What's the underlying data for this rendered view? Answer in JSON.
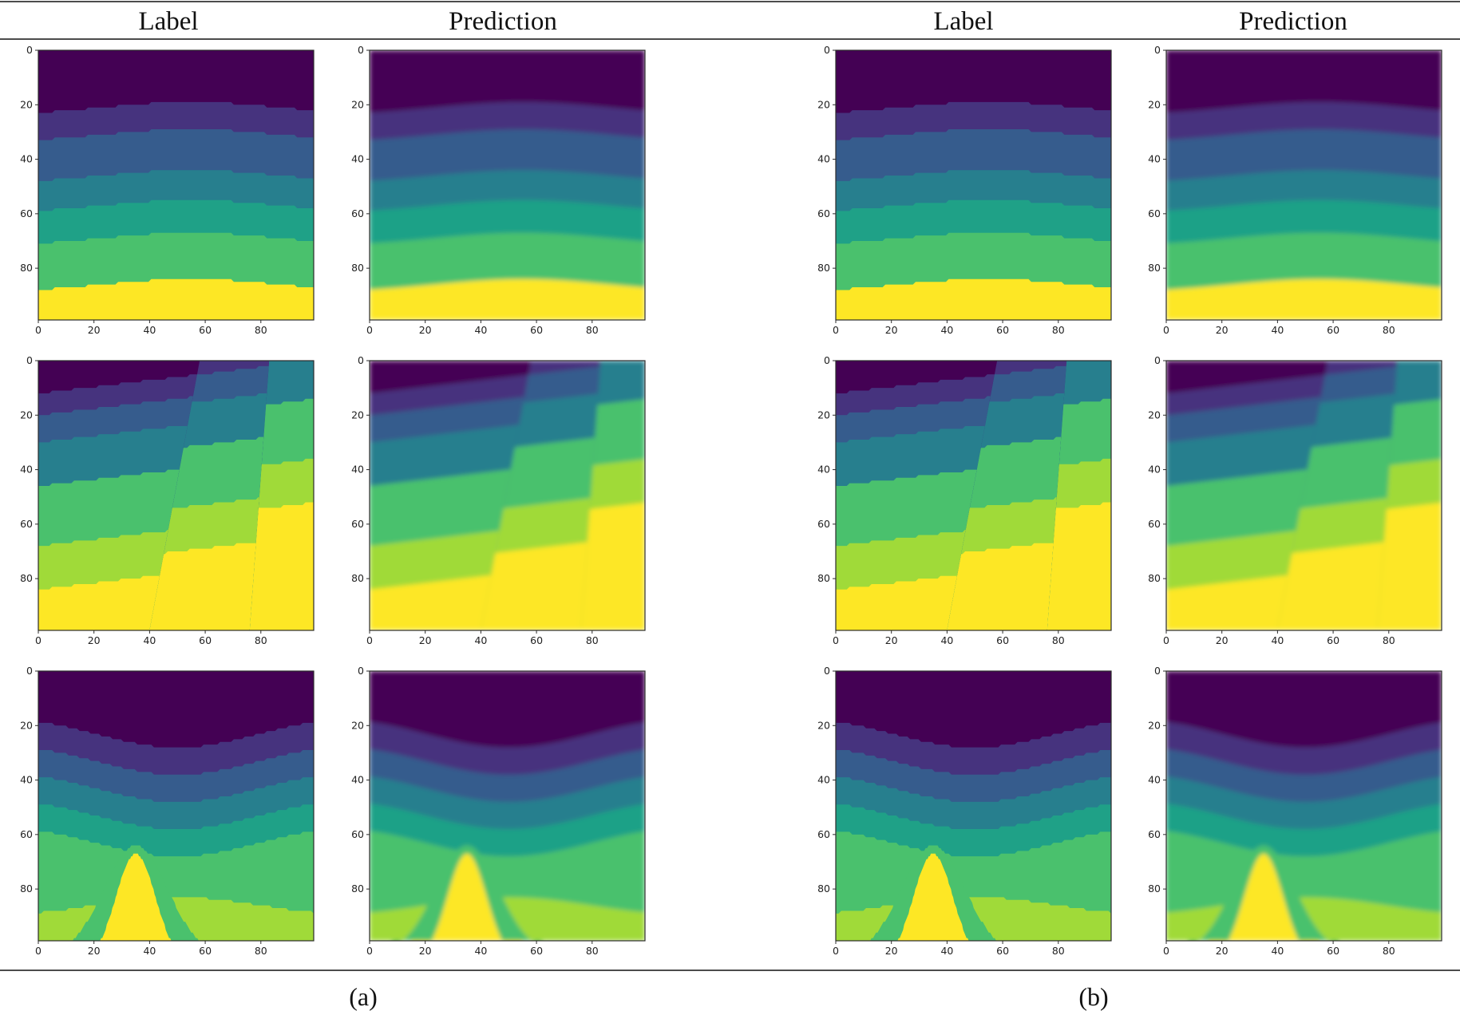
{
  "headers": {
    "a_label": "Label",
    "a_prediction": "Prediction",
    "b_label": "Label",
    "b_prediction": "Prediction"
  },
  "captions": {
    "a": "(a)",
    "b": "(b)"
  },
  "colors": {
    "viridis": [
      "#440154",
      "#46337e",
      "#365c8d",
      "#277f8e",
      "#1fa187",
      "#4ac16d",
      "#a0da39",
      "#fde725"
    ]
  },
  "chart_data": {
    "type": "heatmap",
    "colormap": "viridis",
    "xlim": [
      0,
      99
    ],
    "ylim": [
      99,
      0
    ],
    "ticks": {
      "x": [
        0,
        20,
        40,
        60,
        80
      ],
      "y": [
        0,
        20,
        40,
        60,
        80
      ]
    },
    "panels": [
      {
        "group": "(a)",
        "column": "Label",
        "row": 1,
        "model": "fold"
      },
      {
        "group": "(a)",
        "column": "Prediction",
        "row": 1,
        "model": "fold"
      },
      {
        "group": "(b)",
        "column": "Label",
        "row": 1,
        "model": "fold"
      },
      {
        "group": "(b)",
        "column": "Prediction",
        "row": 1,
        "model": "fold"
      },
      {
        "group": "(a)",
        "column": "Label",
        "row": 2,
        "model": "fault"
      },
      {
        "group": "(a)",
        "column": "Prediction",
        "row": 2,
        "model": "fault"
      },
      {
        "group": "(b)",
        "column": "Label",
        "row": 2,
        "model": "fault"
      },
      {
        "group": "(b)",
        "column": "Prediction",
        "row": 2,
        "model": "fault"
      },
      {
        "group": "(a)",
        "column": "Label",
        "row": 3,
        "model": "salt"
      },
      {
        "group": "(a)",
        "column": "Prediction",
        "row": 3,
        "model": "salt"
      },
      {
        "group": "(b)",
        "column": "Label",
        "row": 3,
        "model": "salt"
      },
      {
        "group": "(b)",
        "column": "Prediction",
        "row": 3,
        "model": "salt"
      }
    ]
  }
}
